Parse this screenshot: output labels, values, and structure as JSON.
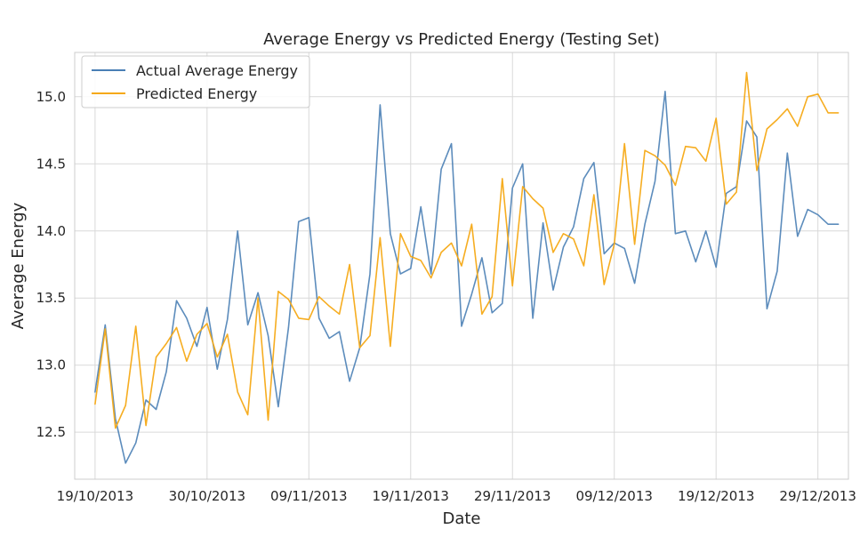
{
  "chart_data": {
    "type": "line",
    "title": "Average Energy vs Predicted Energy (Testing Set)",
    "xlabel": "Date",
    "ylabel": "Average Energy",
    "ylim": [
      12.15,
      15.33
    ],
    "xlim": [
      "2013-10-17",
      "2014-01-01"
    ],
    "grid": true,
    "legend_position": "top-left",
    "yticks": [
      "12.5",
      "13.0",
      "13.5",
      "14.0",
      "14.5",
      "15.0"
    ],
    "xticks": [
      "19/10/2013",
      "30/10/2013",
      "09/11/2013",
      "19/11/2013",
      "29/11/2013",
      "09/12/2013",
      "19/12/2013",
      "29/12/2013"
    ],
    "x": [
      "2013-10-19",
      "2013-10-20",
      "2013-10-21",
      "2013-10-22",
      "2013-10-23",
      "2013-10-24",
      "2013-10-25",
      "2013-10-26",
      "2013-10-27",
      "2013-10-28",
      "2013-10-29",
      "2013-10-30",
      "2013-10-31",
      "2013-11-01",
      "2013-11-02",
      "2013-11-03",
      "2013-11-04",
      "2013-11-05",
      "2013-11-06",
      "2013-11-07",
      "2013-11-08",
      "2013-11-09",
      "2013-11-10",
      "2013-11-11",
      "2013-11-12",
      "2013-11-13",
      "2013-11-14",
      "2013-11-15",
      "2013-11-16",
      "2013-11-17",
      "2013-11-18",
      "2013-11-19",
      "2013-11-20",
      "2013-11-21",
      "2013-11-22",
      "2013-11-23",
      "2013-11-24",
      "2013-11-25",
      "2013-11-26",
      "2013-11-27",
      "2013-11-28",
      "2013-11-29",
      "2013-11-30",
      "2013-12-01",
      "2013-12-02",
      "2013-12-03",
      "2013-12-04",
      "2013-12-05",
      "2013-12-06",
      "2013-12-07",
      "2013-12-08",
      "2013-12-09",
      "2013-12-10",
      "2013-12-11",
      "2013-12-12",
      "2013-12-13",
      "2013-12-14",
      "2013-12-15",
      "2013-12-16",
      "2013-12-17",
      "2013-12-18",
      "2013-12-19",
      "2013-12-20",
      "2013-12-21",
      "2013-12-22",
      "2013-12-23",
      "2013-12-24",
      "2013-12-25",
      "2013-12-26",
      "2013-12-27",
      "2013-12-28",
      "2013-12-29",
      "2013-12-30",
      "2013-12-31"
    ],
    "series": [
      {
        "name": "Actual Average Energy",
        "color": "#4a7fb5",
        "values": [
          12.8,
          13.3,
          12.6,
          12.27,
          12.42,
          12.74,
          12.67,
          12.95,
          13.48,
          13.35,
          13.14,
          13.43,
          12.97,
          13.34,
          14.0,
          13.3,
          13.54,
          13.22,
          12.69,
          13.28,
          14.07,
          14.1,
          13.35,
          13.2,
          13.25,
          12.88,
          13.13,
          13.68,
          14.94,
          13.98,
          13.68,
          13.72,
          14.18,
          13.68,
          14.46,
          14.65,
          13.29,
          13.53,
          13.8,
          13.39,
          13.46,
          14.32,
          14.5,
          13.35,
          14.06,
          13.56,
          13.88,
          14.03,
          14.39,
          14.51,
          13.83,
          13.91,
          13.87,
          13.61,
          14.05,
          14.37,
          15.04,
          13.98,
          14.0,
          13.77,
          14.0,
          13.73,
          14.28,
          14.33,
          14.82,
          14.7,
          13.42,
          13.7,
          14.58,
          13.96,
          14.16,
          14.12,
          14.05,
          14.05
        ]
      },
      {
        "name": "Predicted Energy",
        "color": "#f5a915",
        "values": [
          12.71,
          13.27,
          12.53,
          12.7,
          13.29,
          12.55,
          13.06,
          13.16,
          13.28,
          13.03,
          13.23,
          13.31,
          13.06,
          13.23,
          12.8,
          12.63,
          13.5,
          12.59,
          13.55,
          13.49,
          13.35,
          13.34,
          13.51,
          13.44,
          13.38,
          13.75,
          13.13,
          13.22,
          13.95,
          13.14,
          13.98,
          13.81,
          13.78,
          13.65,
          13.84,
          13.91,
          13.74,
          14.05,
          13.38,
          13.51,
          14.39,
          13.59,
          14.33,
          14.24,
          14.17,
          13.84,
          13.98,
          13.94,
          13.74,
          14.27,
          13.6,
          13.9,
          14.65,
          13.9,
          14.6,
          14.56,
          14.49,
          14.34,
          14.63,
          14.62,
          14.52,
          14.84,
          14.2,
          14.29,
          15.18,
          14.45,
          14.76,
          14.83,
          14.91,
          14.78,
          15.0,
          15.02,
          14.88,
          14.88
        ]
      }
    ]
  }
}
